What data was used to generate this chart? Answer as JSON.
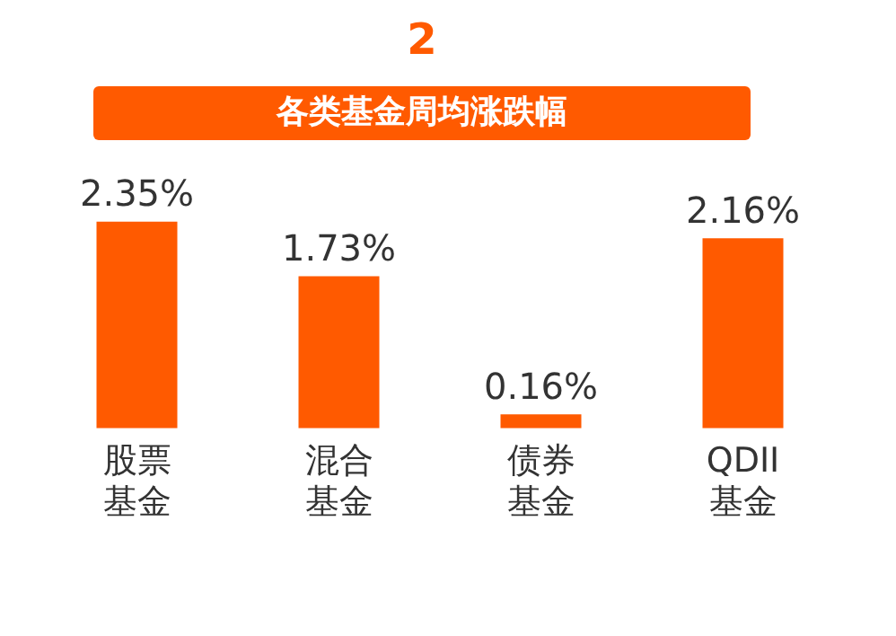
{
  "chart_data": {
    "type": "bar",
    "title": "各类基金周均涨跌幅",
    "annotations": [
      "2"
    ],
    "categories": [
      "股票基金",
      "混合基金",
      "债券基金",
      "QDII基金"
    ],
    "values": [
      2.35,
      1.73,
      0.16,
      2.16
    ],
    "color": "#ff5a00",
    "value_labels": [
      "2.35%",
      "1.73%",
      "0.16%",
      "2.16%"
    ],
    "grid": false,
    "legend": false
  }
}
